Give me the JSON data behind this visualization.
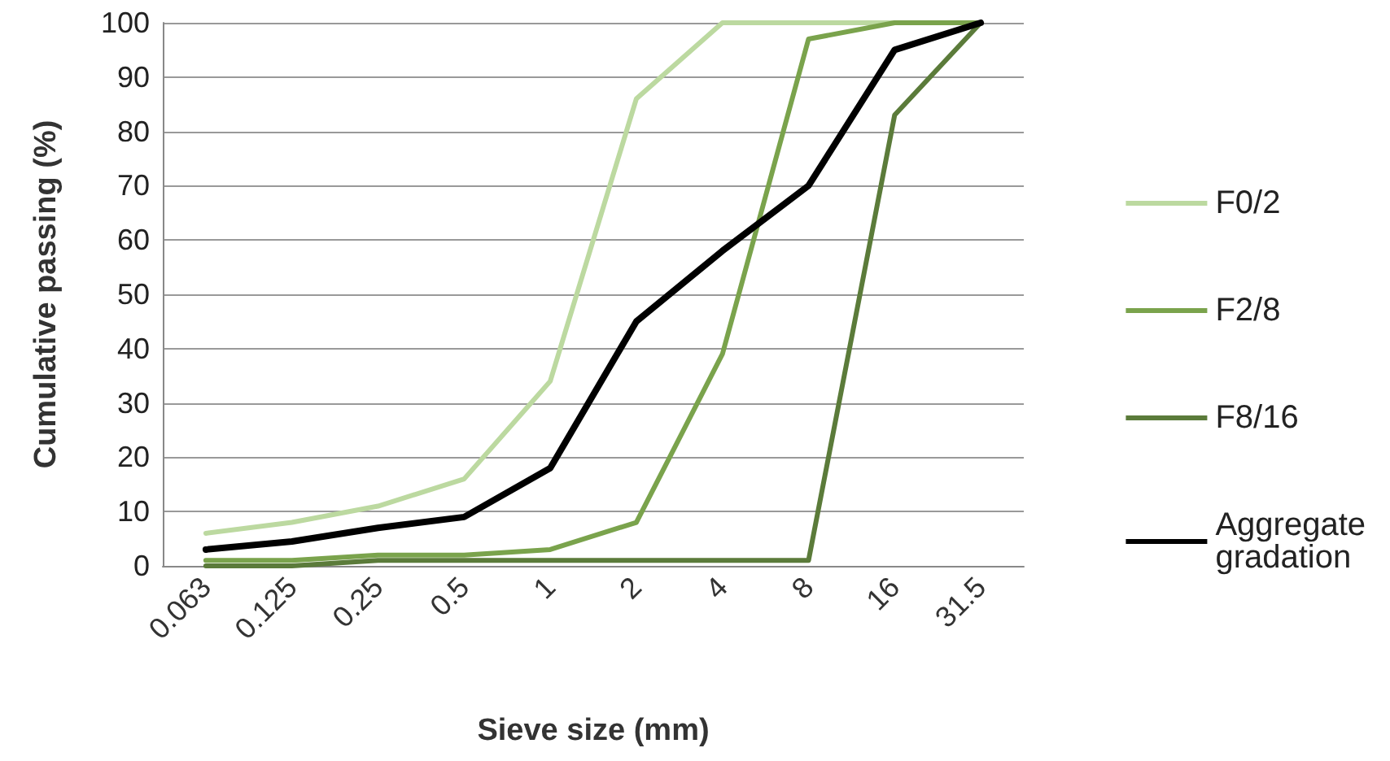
{
  "chart_data": {
    "type": "line",
    "xlabel": "Sieve size (mm)",
    "ylabel": "Cumulative passing (%)",
    "categories": [
      "0.063",
      "0.125",
      "0.25",
      "0.5",
      "1",
      "2",
      "4",
      "8",
      "16",
      "31.5"
    ],
    "series": [
      {
        "name": "F0/2",
        "color": "#bcd9a0",
        "values": [
          6,
          8,
          11,
          16,
          34,
          86,
          100,
          100,
          100,
          100
        ]
      },
      {
        "name": "F2/8",
        "color": "#7aa34c",
        "values": [
          1,
          1,
          2,
          2,
          3,
          8,
          39,
          97,
          100,
          100
        ]
      },
      {
        "name": "F8/16",
        "color": "#5b7b3a",
        "values": [
          0,
          0,
          1,
          1,
          1,
          1,
          1,
          1,
          83,
          100
        ]
      },
      {
        "name": "Aggregate gradation",
        "color": "#000000",
        "values": [
          3,
          4.5,
          7,
          9,
          18,
          45,
          58,
          70,
          95,
          100
        ]
      }
    ],
    "ylim": [
      0,
      100
    ],
    "yticks": [
      0,
      10,
      20,
      30,
      40,
      50,
      60,
      70,
      80,
      90,
      100
    ],
    "grid": "y",
    "legend": "right",
    "marker": "none"
  }
}
